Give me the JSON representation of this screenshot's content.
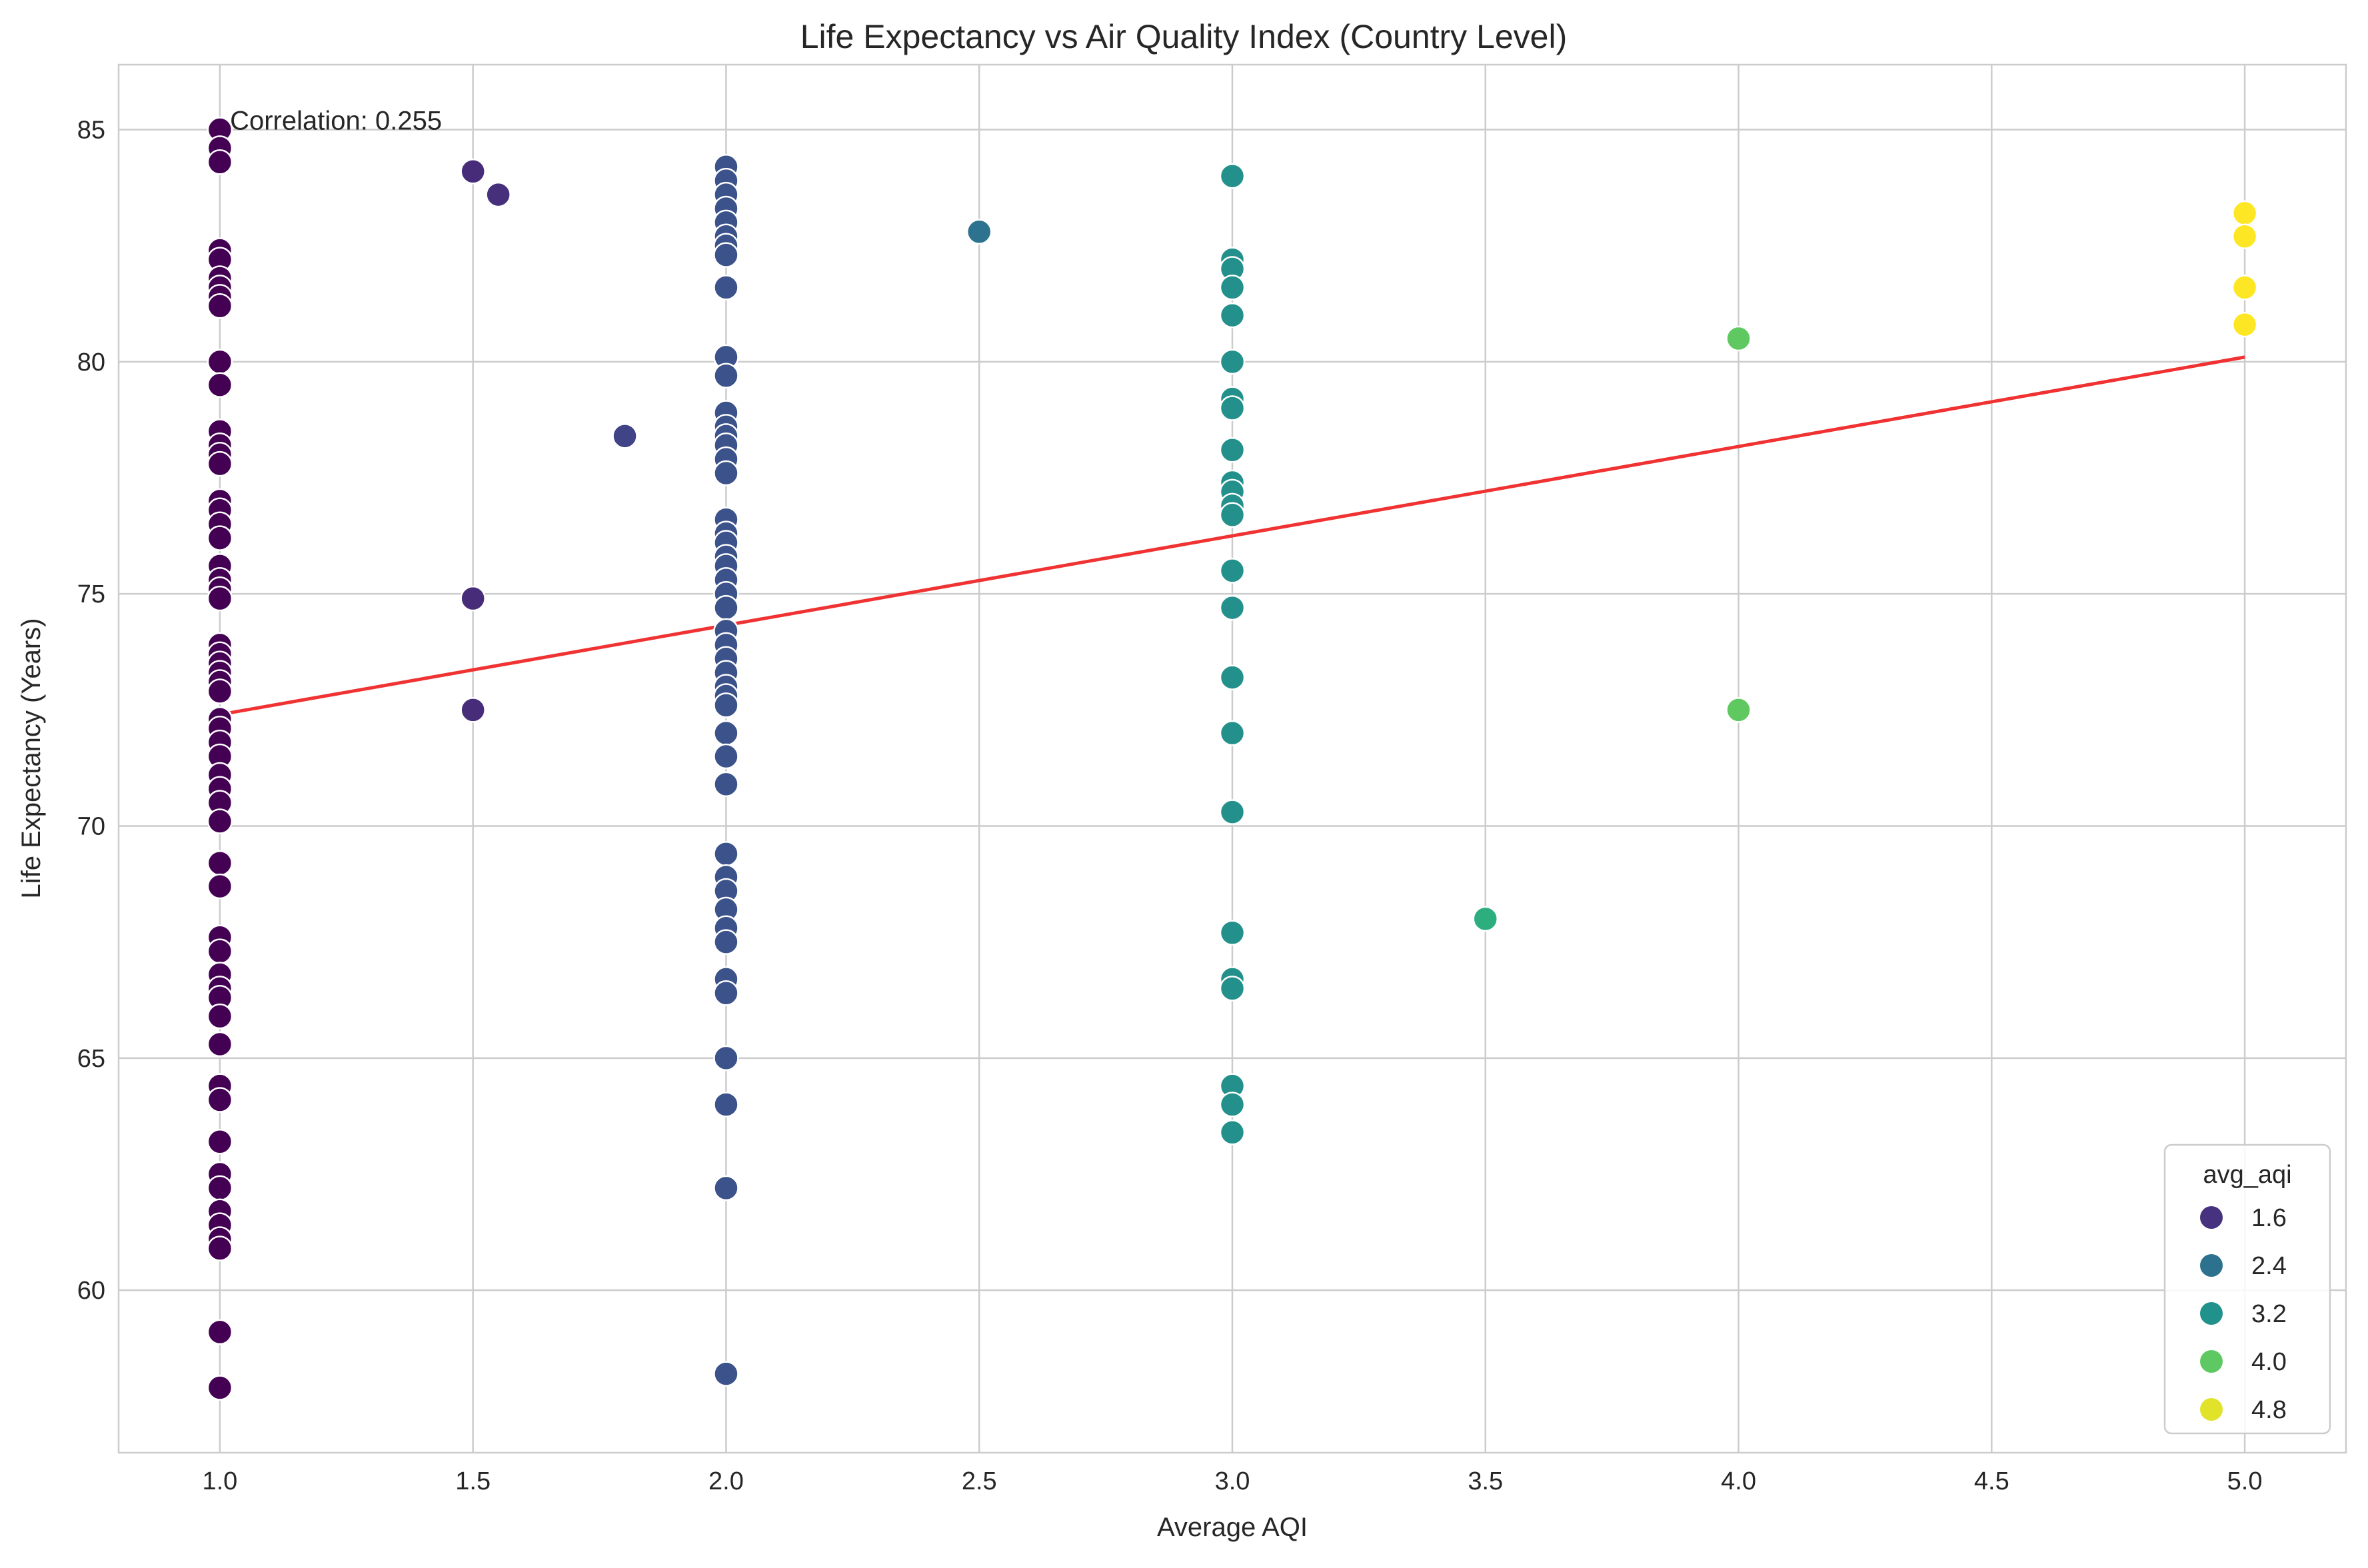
{
  "chart_data": {
    "type": "scatter",
    "title": "Life Expectancy vs Air Quality Index (Country Level)",
    "xlabel": "Average AQI",
    "ylabel": "Life Expectancy (Years)",
    "xlim": [
      0.8,
      5.2
    ],
    "ylim": [
      56.5,
      86.4
    ],
    "xticks": [
      1.0,
      1.5,
      2.0,
      2.5,
      3.0,
      3.5,
      4.0,
      4.5,
      5.0
    ],
    "xtick_labels": [
      "1.0",
      "1.5",
      "2.0",
      "2.5",
      "3.0",
      "3.5",
      "4.0",
      "4.5",
      "5.0"
    ],
    "yticks": [
      60,
      65,
      70,
      75,
      80,
      85
    ],
    "ytick_labels": [
      "60",
      "65",
      "70",
      "75",
      "80",
      "85"
    ],
    "grid": true,
    "colormap": "viridis",
    "hue_range": [
      1.0,
      5.0
    ],
    "annotation": {
      "text": "Correlation: 0.255",
      "x": 1.02,
      "y": 85.0
    },
    "trendline": {
      "color": "#f03232",
      "x": [
        1.0,
        5.0
      ],
      "y": [
        72.4,
        80.1
      ]
    },
    "legend": {
      "title": "avg_aqi",
      "position": "bottom-right",
      "entries": [
        {
          "label": "1.6",
          "color": "#46327e"
        },
        {
          "label": "2.4",
          "color": "#2c728e"
        },
        {
          "label": "3.2",
          "color": "#21918c"
        },
        {
          "label": "4.0",
          "color": "#5ec962"
        },
        {
          "label": "4.8",
          "color": "#e0e32a"
        }
      ]
    },
    "points": [
      {
        "x": 1.0,
        "y": [
          85.0,
          84.6,
          84.3,
          82.4,
          82.2,
          81.8,
          81.6,
          81.4,
          81.2,
          80.0,
          79.5,
          78.5,
          78.2,
          78.0,
          77.8,
          77.0,
          76.8,
          76.5,
          76.2,
          75.6,
          75.3,
          75.1,
          74.9,
          73.9,
          73.7,
          73.5,
          73.3,
          73.1,
          72.9,
          72.3,
          72.1,
          71.8,
          71.5,
          71.1,
          70.8,
          70.5,
          70.1,
          69.2,
          68.7,
          67.6,
          67.3,
          66.8,
          66.5,
          66.3,
          65.9,
          65.3,
          64.4,
          64.1,
          63.2,
          62.5,
          62.2,
          61.7,
          61.4,
          61.1,
          60.9,
          59.1,
          57.9
        ]
      },
      {
        "x": 1.5,
        "y": [
          84.1,
          74.9,
          72.5
        ]
      },
      {
        "x": 1.55,
        "y": [
          83.6
        ]
      },
      {
        "x": 1.8,
        "y": [
          78.4
        ]
      },
      {
        "x": 2.0,
        "y": [
          84.2,
          83.9,
          83.6,
          83.3,
          83.0,
          82.7,
          82.5,
          82.3,
          81.6,
          80.1,
          79.7,
          78.9,
          78.6,
          78.4,
          78.2,
          77.9,
          77.6,
          76.6,
          76.3,
          76.1,
          75.8,
          75.6,
          75.3,
          75.0,
          74.7,
          74.2,
          73.9,
          73.6,
          73.3,
          73.0,
          72.8,
          72.6,
          72.0,
          71.5,
          70.9,
          69.4,
          68.9,
          68.6,
          68.2,
          67.8,
          67.5,
          66.7,
          66.4,
          65.0,
          64.0,
          62.2,
          58.2
        ]
      },
      {
        "x": 2.5,
        "y": [
          82.8
        ]
      },
      {
        "x": 3.0,
        "y": [
          84.0,
          82.2,
          82.0,
          81.6,
          81.0,
          80.0,
          79.2,
          79.0,
          78.1,
          77.4,
          77.2,
          76.9,
          76.7,
          75.5,
          74.7,
          73.2,
          72.0,
          70.3,
          67.7,
          66.7,
          66.5,
          64.4,
          64.0,
          63.4
        ]
      },
      {
        "x": 3.5,
        "y": [
          68.0
        ]
      },
      {
        "x": 4.0,
        "y": [
          80.5,
          72.5
        ]
      },
      {
        "x": 5.0,
        "y": [
          83.2,
          82.7,
          81.6,
          80.8
        ]
      }
    ]
  }
}
